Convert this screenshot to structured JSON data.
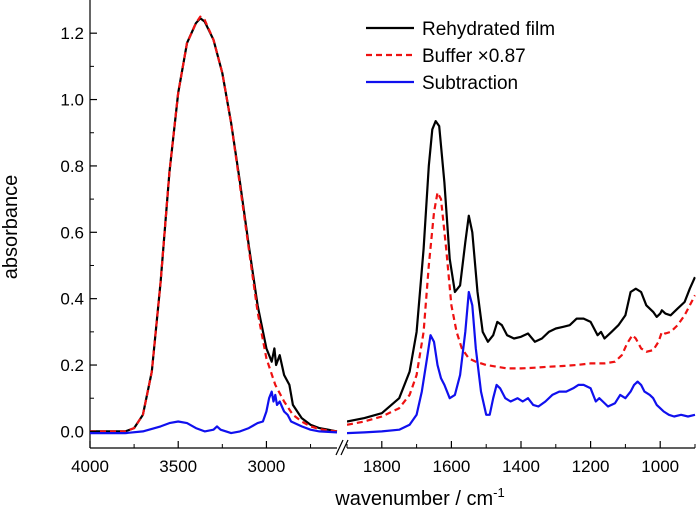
{
  "chart_data": {
    "type": "line",
    "title": "",
    "xlabel": "wavenumber / cm",
    "xlabel_superscript": "-1",
    "ylabel": "absorbance",
    "ylim": [
      -0.05,
      1.3
    ],
    "y_ticks": [
      0.0,
      0.2,
      0.4,
      0.6,
      0.8,
      1.0,
      1.2
    ],
    "y_tick_labels": [
      "0.0",
      "0.2",
      "0.4",
      "0.6",
      "0.8",
      "1.0",
      "1.2"
    ],
    "axis_break": {
      "from": 2600,
      "to": 1900
    },
    "x_segments": [
      {
        "xlim": [
          4000,
          2600
        ],
        "ticks": [
          4000,
          3500,
          3000
        ],
        "tick_labels": [
          "4000",
          "3500",
          "3000"
        ]
      },
      {
        "xlim": [
          1900,
          900
        ],
        "ticks": [
          1800,
          1600,
          1400,
          1200,
          1000
        ],
        "tick_labels": [
          "1800",
          "1600",
          "1400",
          "1200",
          "1000"
        ]
      }
    ],
    "legend": {
      "position": "top-right",
      "entries": [
        {
          "label": "Rehydrated film",
          "color": "#000000",
          "dash": "solid"
        },
        {
          "label": "Buffer ×0.87",
          "color": "#ee1111",
          "dash": "dashed"
        },
        {
          "label": "Subtraction",
          "color": "#1010ee",
          "dash": "solid"
        }
      ]
    },
    "series": [
      {
        "name": "Rehydrated film",
        "color": "#000000",
        "dash": "solid",
        "segments": [
          [
            [
              4000,
              0.0
            ],
            [
              3800,
              0.0
            ],
            [
              3750,
              0.01
            ],
            [
              3700,
              0.05
            ],
            [
              3650,
              0.18
            ],
            [
              3600,
              0.45
            ],
            [
              3550,
              0.78
            ],
            [
              3500,
              1.02
            ],
            [
              3450,
              1.17
            ],
            [
              3400,
              1.23
            ],
            [
              3375,
              1.245
            ],
            [
              3350,
              1.235
            ],
            [
              3300,
              1.18
            ],
            [
              3250,
              1.08
            ],
            [
              3200,
              0.93
            ],
            [
              3150,
              0.75
            ],
            [
              3100,
              0.56
            ],
            [
              3050,
              0.38
            ],
            [
              3000,
              0.25
            ],
            [
              2970,
              0.21
            ],
            [
              2955,
              0.25
            ],
            [
              2945,
              0.2
            ],
            [
              2925,
              0.23
            ],
            [
              2900,
              0.17
            ],
            [
              2870,
              0.14
            ],
            [
              2850,
              0.08
            ],
            [
              2800,
              0.04
            ],
            [
              2750,
              0.02
            ],
            [
              2700,
              0.01
            ],
            [
              2650,
              0.005
            ],
            [
              2600,
              0.0
            ]
          ],
          [
            [
              1900,
              0.03
            ],
            [
              1850,
              0.04
            ],
            [
              1800,
              0.055
            ],
            [
              1750,
              0.1
            ],
            [
              1720,
              0.18
            ],
            [
              1700,
              0.3
            ],
            [
              1680,
              0.55
            ],
            [
              1665,
              0.8
            ],
            [
              1655,
              0.91
            ],
            [
              1645,
              0.935
            ],
            [
              1635,
              0.92
            ],
            [
              1620,
              0.75
            ],
            [
              1605,
              0.52
            ],
            [
              1590,
              0.42
            ],
            [
              1575,
              0.44
            ],
            [
              1560,
              0.57
            ],
            [
              1550,
              0.65
            ],
            [
              1540,
              0.6
            ],
            [
              1525,
              0.42
            ],
            [
              1510,
              0.3
            ],
            [
              1495,
              0.27
            ],
            [
              1480,
              0.29
            ],
            [
              1468,
              0.33
            ],
            [
              1455,
              0.32
            ],
            [
              1440,
              0.29
            ],
            [
              1420,
              0.28
            ],
            [
              1400,
              0.285
            ],
            [
              1380,
              0.295
            ],
            [
              1360,
              0.27
            ],
            [
              1340,
              0.28
            ],
            [
              1320,
              0.3
            ],
            [
              1300,
              0.31
            ],
            [
              1280,
              0.315
            ],
            [
              1260,
              0.32
            ],
            [
              1240,
              0.34
            ],
            [
              1220,
              0.34
            ],
            [
              1200,
              0.33
            ],
            [
              1180,
              0.29
            ],
            [
              1170,
              0.3
            ],
            [
              1160,
              0.28
            ],
            [
              1140,
              0.3
            ],
            [
              1120,
              0.32
            ],
            [
              1100,
              0.35
            ],
            [
              1085,
              0.42
            ],
            [
              1070,
              0.43
            ],
            [
              1055,
              0.42
            ],
            [
              1040,
              0.38
            ],
            [
              1020,
              0.36
            ],
            [
              1010,
              0.345
            ],
            [
              1000,
              0.355
            ],
            [
              995,
              0.365
            ],
            [
              985,
              0.355
            ],
            [
              970,
              0.35
            ],
            [
              950,
              0.37
            ],
            [
              930,
              0.39
            ],
            [
              915,
              0.43
            ],
            [
              900,
              0.465
            ]
          ]
        ]
      },
      {
        "name": "Buffer ×0.87",
        "color": "#ee1111",
        "dash": "dashed",
        "segments": [
          [
            [
              4000,
              0.0
            ],
            [
              3800,
              0.0
            ],
            [
              3750,
              0.01
            ],
            [
              3700,
              0.05
            ],
            [
              3650,
              0.18
            ],
            [
              3600,
              0.45
            ],
            [
              3550,
              0.78
            ],
            [
              3500,
              1.02
            ],
            [
              3450,
              1.17
            ],
            [
              3400,
              1.23
            ],
            [
              3375,
              1.25
            ],
            [
              3350,
              1.24
            ],
            [
              3300,
              1.18
            ],
            [
              3250,
              1.08
            ],
            [
              3200,
              0.93
            ],
            [
              3150,
              0.74
            ],
            [
              3100,
              0.55
            ],
            [
              3050,
              0.36
            ],
            [
              3000,
              0.22
            ],
            [
              2950,
              0.14
            ],
            [
              2900,
              0.09
            ],
            [
              2850,
              0.05
            ],
            [
              2800,
              0.03
            ],
            [
              2750,
              0.015
            ],
            [
              2700,
              0.007
            ],
            [
              2650,
              0.003
            ],
            [
              2600,
              0.0
            ]
          ],
          [
            [
              1900,
              0.02
            ],
            [
              1850,
              0.03
            ],
            [
              1800,
              0.045
            ],
            [
              1750,
              0.07
            ],
            [
              1720,
              0.11
            ],
            [
              1700,
              0.17
            ],
            [
              1680,
              0.3
            ],
            [
              1665,
              0.5
            ],
            [
              1650,
              0.66
            ],
            [
              1640,
              0.72
            ],
            [
              1630,
              0.7
            ],
            [
              1615,
              0.55
            ],
            [
              1600,
              0.38
            ],
            [
              1585,
              0.3
            ],
            [
              1570,
              0.25
            ],
            [
              1550,
              0.22
            ],
            [
              1530,
              0.21
            ],
            [
              1500,
              0.2
            ],
            [
              1470,
              0.195
            ],
            [
              1440,
              0.19
            ],
            [
              1400,
              0.19
            ],
            [
              1360,
              0.192
            ],
            [
              1320,
              0.195
            ],
            [
              1280,
              0.197
            ],
            [
              1240,
              0.2
            ],
            [
              1200,
              0.205
            ],
            [
              1160,
              0.205
            ],
            [
              1130,
              0.21
            ],
            [
              1110,
              0.23
            ],
            [
              1095,
              0.265
            ],
            [
              1080,
              0.29
            ],
            [
              1070,
              0.28
            ],
            [
              1055,
              0.25
            ],
            [
              1040,
              0.24
            ],
            [
              1020,
              0.245
            ],
            [
              1005,
              0.27
            ],
            [
              995,
              0.3
            ],
            [
              985,
              0.295
            ],
            [
              970,
              0.3
            ],
            [
              950,
              0.32
            ],
            [
              930,
              0.35
            ],
            [
              915,
              0.38
            ],
            [
              900,
              0.41
            ]
          ]
        ]
      },
      {
        "name": "Subtraction",
        "color": "#1010ee",
        "dash": "solid",
        "segments": [
          [
            [
              4000,
              -0.005
            ],
            [
              3800,
              -0.005
            ],
            [
              3700,
              0.0
            ],
            [
              3600,
              0.015
            ],
            [
              3550,
              0.025
            ],
            [
              3500,
              0.03
            ],
            [
              3450,
              0.025
            ],
            [
              3400,
              0.01
            ],
            [
              3350,
              0.0
            ],
            [
              3300,
              0.005
            ],
            [
              3280,
              0.015
            ],
            [
              3260,
              0.005
            ],
            [
              3200,
              -0.005
            ],
            [
              3150,
              0.0
            ],
            [
              3100,
              0.01
            ],
            [
              3050,
              0.025
            ],
            [
              3020,
              0.03
            ],
            [
              3000,
              0.06
            ],
            [
              2985,
              0.1
            ],
            [
              2970,
              0.12
            ],
            [
              2960,
              0.09
            ],
            [
              2950,
              0.11
            ],
            [
              2940,
              0.08
            ],
            [
              2925,
              0.09
            ],
            [
              2900,
              0.06
            ],
            [
              2880,
              0.05
            ],
            [
              2860,
              0.03
            ],
            [
              2800,
              0.015
            ],
            [
              2750,
              0.005
            ],
            [
              2700,
              0.0
            ],
            [
              2600,
              -0.003
            ]
          ],
          [
            [
              1900,
              -0.005
            ],
            [
              1850,
              -0.003
            ],
            [
              1800,
              0.0
            ],
            [
              1750,
              0.005
            ],
            [
              1720,
              0.02
            ],
            [
              1700,
              0.05
            ],
            [
              1685,
              0.12
            ],
            [
              1670,
              0.22
            ],
            [
              1660,
              0.29
            ],
            [
              1650,
              0.27
            ],
            [
              1640,
              0.2
            ],
            [
              1630,
              0.16
            ],
            [
              1620,
              0.14
            ],
            [
              1605,
              0.1
            ],
            [
              1590,
              0.11
            ],
            [
              1575,
              0.17
            ],
            [
              1560,
              0.3
            ],
            [
              1550,
              0.42
            ],
            [
              1540,
              0.38
            ],
            [
              1530,
              0.25
            ],
            [
              1515,
              0.12
            ],
            [
              1500,
              0.05
            ],
            [
              1490,
              0.05
            ],
            [
              1480,
              0.1
            ],
            [
              1470,
              0.14
            ],
            [
              1460,
              0.13
            ],
            [
              1445,
              0.1
            ],
            [
              1430,
              0.09
            ],
            [
              1410,
              0.1
            ],
            [
              1395,
              0.09
            ],
            [
              1380,
              0.1
            ],
            [
              1365,
              0.08
            ],
            [
              1350,
              0.075
            ],
            [
              1330,
              0.09
            ],
            [
              1310,
              0.11
            ],
            [
              1290,
              0.12
            ],
            [
              1270,
              0.12
            ],
            [
              1250,
              0.13
            ],
            [
              1235,
              0.14
            ],
            [
              1220,
              0.14
            ],
            [
              1200,
              0.13
            ],
            [
              1185,
              0.09
            ],
            [
              1175,
              0.1
            ],
            [
              1165,
              0.09
            ],
            [
              1150,
              0.075
            ],
            [
              1130,
              0.085
            ],
            [
              1115,
              0.11
            ],
            [
              1100,
              0.1
            ],
            [
              1085,
              0.12
            ],
            [
              1075,
              0.14
            ],
            [
              1065,
              0.15
            ],
            [
              1055,
              0.14
            ],
            [
              1045,
              0.12
            ],
            [
              1030,
              0.11
            ],
            [
              1020,
              0.1
            ],
            [
              1010,
              0.08
            ],
            [
              1000,
              0.07
            ],
            [
              990,
              0.06
            ],
            [
              975,
              0.05
            ],
            [
              960,
              0.045
            ],
            [
              940,
              0.05
            ],
            [
              920,
              0.045
            ],
            [
              900,
              0.05
            ]
          ]
        ]
      }
    ]
  }
}
